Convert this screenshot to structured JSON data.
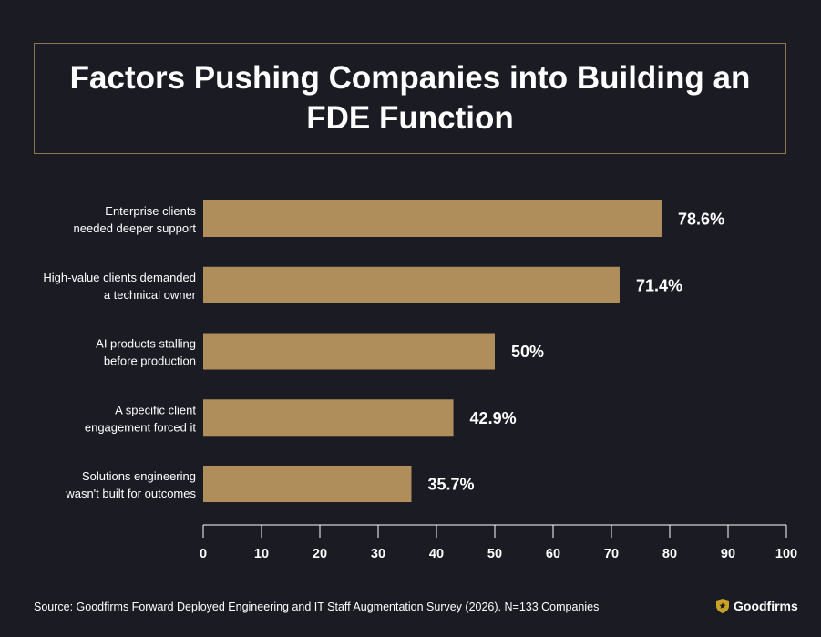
{
  "title": "Factors Pushing Companies into Building an FDE Function",
  "source": "Source: Goodfirms Forward Deployed Engineering and IT Staff Augmentation Survey (2026). N=133 Companies",
  "brand": {
    "name": "Goodfirms",
    "icon": "goodfirms-shield-icon"
  },
  "colors": {
    "background": "#1b1b24",
    "bar": "#b08e5b",
    "border": "#8c7650",
    "text": "#ffffff"
  },
  "chart_data": {
    "type": "bar",
    "orientation": "horizontal",
    "categories": [
      [
        "Enterprise clients",
        "needed deeper support"
      ],
      [
        "High-value clients demanded",
        "a technical owner"
      ],
      [
        "AI products stalling",
        "before production"
      ],
      [
        "A specific client",
        "engagement forced it"
      ],
      [
        "Solutions engineering",
        "wasn't built for outcomes"
      ]
    ],
    "values": [
      78.6,
      71.4,
      50,
      42.9,
      35.7
    ],
    "value_labels": [
      "78.6%",
      "71.4%",
      "50%",
      "42.9%",
      "35.7%"
    ],
    "xlim": [
      0,
      100
    ],
    "xticks": [
      0,
      10,
      20,
      30,
      40,
      50,
      60,
      70,
      80,
      90,
      100
    ],
    "xtick_labels": [
      "0",
      "10",
      "20",
      "30",
      "40",
      "50",
      "60",
      "70",
      "80",
      "90",
      "100"
    ],
    "grid": false,
    "legend": "none"
  }
}
